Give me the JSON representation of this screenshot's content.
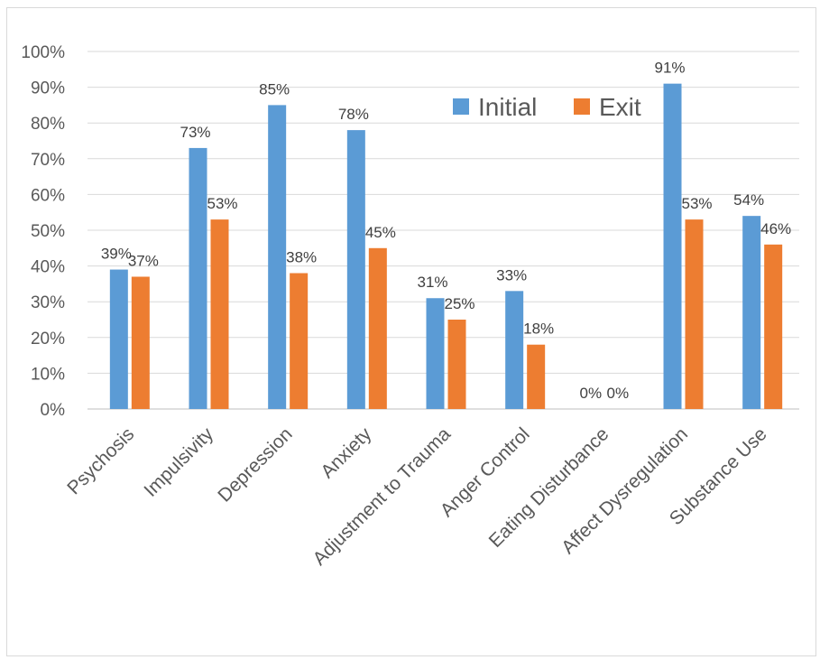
{
  "chart_data": {
    "type": "bar",
    "categories": [
      "Psychosis",
      "Impulsivity",
      "Depression",
      "Anxiety",
      "Adjustment to Trauma",
      "Anger Control",
      "Eating Disturbance",
      "Affect Dysregulation",
      "Substance Use"
    ],
    "series": [
      {
        "name": "Initial",
        "color": "#5b9bd5",
        "values": [
          39,
          73,
          85,
          78,
          31,
          33,
          0,
          91,
          54
        ],
        "labels": [
          "39%",
          "73%",
          "85%",
          "78%",
          "31%",
          "33%",
          "0%",
          "91%",
          "54%"
        ]
      },
      {
        "name": "Exit",
        "color": "#ed7d31",
        "values": [
          37,
          53,
          38,
          45,
          25,
          18,
          0,
          53,
          46
        ],
        "labels": [
          "37%",
          "53%",
          "38%",
          "45%",
          "25%",
          "18%",
          "0%",
          "53%",
          "46%"
        ]
      }
    ],
    "title": "",
    "xlabel": "",
    "ylabel": "",
    "ylim": [
      0,
      100
    ],
    "yticks": [
      "0%",
      "10%",
      "20%",
      "30%",
      "40%",
      "50%",
      "60%",
      "70%",
      "80%",
      "90%",
      "100%"
    ],
    "grid": true,
    "legend_position": "top-right"
  }
}
